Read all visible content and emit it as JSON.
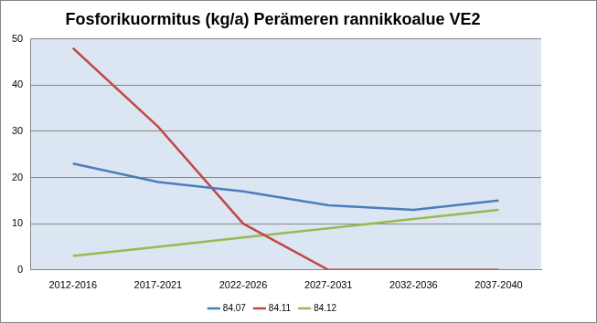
{
  "chart_data": {
    "type": "line",
    "title": "Fosforikuormitus (kg/a) Perämeren rannikkoalue VE2",
    "categories": [
      "2012-2016",
      "2017-2021",
      "2022-2026",
      "2027-2031",
      "2032-2036",
      "2037-2040"
    ],
    "series": [
      {
        "name": "84.07",
        "color": "#4a7ebb",
        "values": [
          23,
          19,
          17,
          14,
          13,
          15
        ]
      },
      {
        "name": "84.11",
        "color": "#be4b48",
        "values": [
          48,
          31,
          10,
          0,
          0,
          0
        ]
      },
      {
        "name": "84.12",
        "color": "#98b954",
        "values": [
          3,
          5,
          7,
          9,
          11,
          13
        ]
      }
    ],
    "ylim": [
      0,
      50
    ],
    "yticks": [
      0,
      10,
      20,
      30,
      40,
      50
    ],
    "grid": true,
    "legend": "bottom"
  }
}
